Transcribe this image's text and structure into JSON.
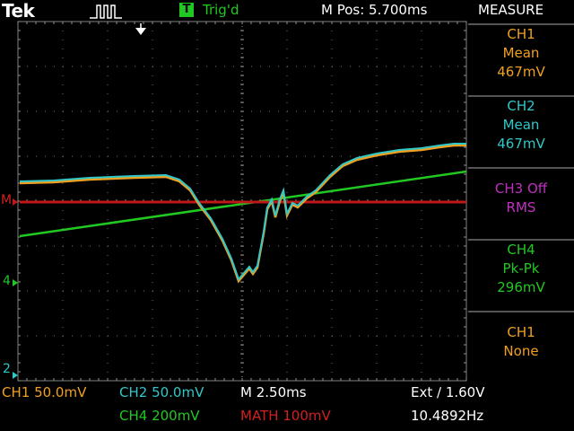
{
  "header": {
    "brand": "Tek",
    "trigger_badge": "T",
    "trigger_status": "Trig'd",
    "position": "M Pos: 5.700ms",
    "measure_title": "MEASURE"
  },
  "markers": {
    "math": "M",
    "ch4": "4",
    "ch2": "2"
  },
  "measurements": [
    {
      "channel": "CH1",
      "type": "Mean",
      "value": "467mV",
      "color": "#f0a020"
    },
    {
      "channel": "CH2",
      "type": "Mean",
      "value": "467mV",
      "color": "#30c8c8"
    },
    {
      "channel": "CH3 Off",
      "type": "RMS",
      "value": "",
      "color": "#c030c0"
    },
    {
      "channel": "CH4",
      "type": "Pk-Pk",
      "value": "296mV",
      "color": "#22c822"
    },
    {
      "channel": "CH1",
      "type": "None",
      "value": "",
      "color": "#f0a020"
    }
  ],
  "status": {
    "ch1": "CH1  50.0mV",
    "ch2": "CH2  50.0mV",
    "ch4": "CH4  200mV",
    "math": "MATH 100mV",
    "timebase": "M 2.50ms",
    "trigger": "Ext ∕ 1.60V",
    "frequency": "10.4892Hz"
  },
  "colors": {
    "ch1": "#f0a020",
    "ch2": "#30c8c8",
    "ch4": "#22c822",
    "math": "#c01818"
  }
}
